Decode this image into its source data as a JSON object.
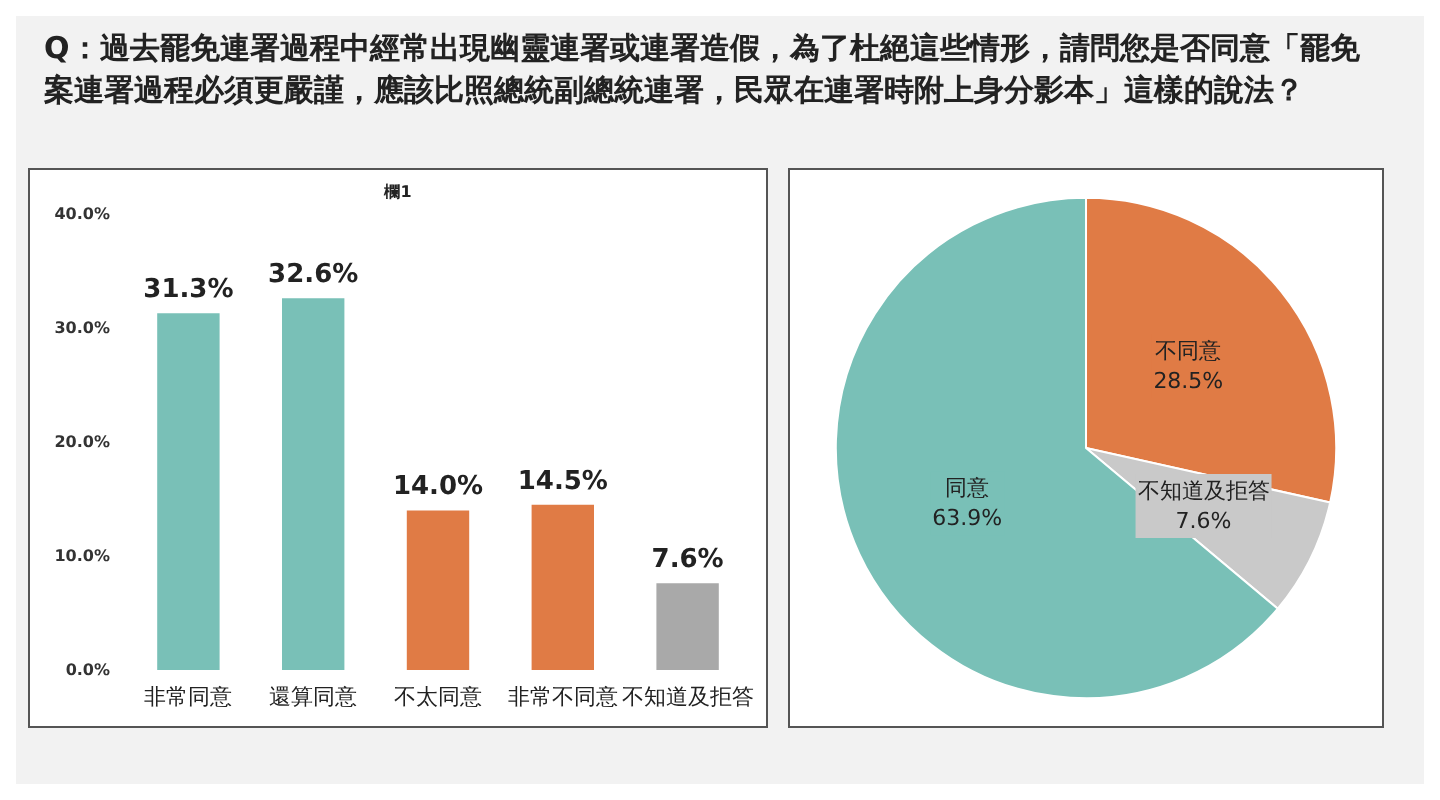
{
  "chart_data": [
    {
      "type": "bar",
      "title": "Q：過去罷免連署過程中經常出現幽靈連署或連署造假，為了杜絕這些情形，請問您是否同意「罷免案連署過程必須更嚴謹，應該比照總統副總統連署，民眾在連署時附上身分影本」這樣的說法？",
      "subtitle": "欄1",
      "categories": [
        "非常同意",
        "還算同意",
        "不太同意",
        "非常不同意",
        "不知道及拒答"
      ],
      "values": [
        31.3,
        32.6,
        14.0,
        14.5,
        7.6
      ],
      "colors": [
        "#79c0b7",
        "#79c0b7",
        "#e07b45",
        "#e07b45",
        "#a9a9a9"
      ],
      "value_labels": [
        "31.3%",
        "32.6%",
        "14.0%",
        "14.5%",
        "7.6%"
      ],
      "ylim": [
        0,
        40
      ],
      "yticks": [
        {
          "value": 0,
          "label": "0.0%"
        },
        {
          "value": 10,
          "label": "10.0%"
        },
        {
          "value": 20,
          "label": "20.0%"
        },
        {
          "value": 30,
          "label": "30.0%"
        },
        {
          "value": 40,
          "label": "40.0%"
        }
      ],
      "grid": false,
      "legend": false
    },
    {
      "type": "pie",
      "categories": [
        "不同意",
        "不知道及拒答",
        "同意"
      ],
      "values": [
        28.5,
        7.6,
        63.9
      ],
      "colors": [
        "#e07b45",
        "#c9c9c9",
        "#79c0b7"
      ],
      "value_labels": [
        "28.5%",
        "7.6%",
        "63.9%"
      ],
      "legend": false
    }
  ]
}
